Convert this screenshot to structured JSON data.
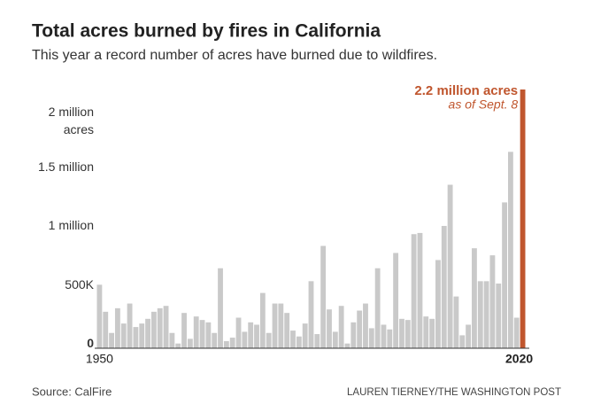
{
  "chart_data": {
    "type": "bar",
    "title": "Total acres burned by fires in California",
    "subtitle": "This year a record number of acres have burned due to wildfires.",
    "source": "Source: CalFire",
    "credit": "LAUREN TIERNEY/THE WASHINGTON POST",
    "annotation": "as of Sept. 8",
    "categories": [
      "1950",
      null,
      null,
      null,
      null,
      null,
      null,
      null,
      null,
      null,
      null,
      null,
      null,
      null,
      null,
      null,
      null,
      null,
      null,
      null,
      null,
      null,
      null,
      null,
      null,
      null,
      null,
      null,
      null,
      null,
      null,
      null,
      null,
      null,
      null,
      null,
      null,
      null,
      null,
      null,
      null,
      null,
      null,
      null,
      null,
      null,
      null,
      null,
      null,
      null,
      null,
      null,
      null,
      null,
      null,
      null,
      null,
      null,
      null,
      null,
      null,
      null,
      null,
      null,
      null,
      null,
      null,
      null,
      null,
      null,
      "2020"
    ],
    "values": [
      540000,
      310000,
      130000,
      340000,
      210000,
      380000,
      180000,
      210000,
      250000,
      310000,
      340000,
      360000,
      130000,
      40000,
      300000,
      80000,
      270000,
      240000,
      220000,
      130000,
      680000,
      60000,
      90000,
      260000,
      140000,
      220000,
      200000,
      470000,
      130000,
      380000,
      380000,
      300000,
      150000,
      100000,
      210000,
      570000,
      120000,
      870000,
      330000,
      140000,
      360000,
      40000,
      220000,
      320000,
      380000,
      170000,
      680000,
      200000,
      160000,
      810000,
      250000,
      240000,
      970000,
      980000,
      270000,
      250000,
      750000,
      1040000,
      1390000,
      440000,
      110000,
      200000,
      850000,
      570000,
      570000,
      790000,
      550000,
      1240000,
      1670000,
      260000,
      2200000
    ],
    "value_labels": [
      null,
      null,
      null,
      null,
      null,
      null,
      null,
      null,
      null,
      null,
      null,
      null,
      null,
      null,
      null,
      null,
      null,
      null,
      null,
      null,
      null,
      null,
      null,
      null,
      null,
      null,
      null,
      null,
      null,
      null,
      null,
      null,
      null,
      null,
      null,
      null,
      null,
      null,
      null,
      null,
      null,
      null,
      null,
      null,
      null,
      null,
      null,
      null,
      null,
      null,
      null,
      null,
      null,
      null,
      null,
      null,
      null,
      null,
      null,
      null,
      null,
      null,
      null,
      null,
      null,
      null,
      null,
      null,
      null,
      null,
      "2.2 million acres"
    ],
    "colors": [
      "#c9c9c9",
      "#c9c9c9",
      "#c9c9c9",
      "#c9c9c9",
      "#c9c9c9",
      "#c9c9c9",
      "#c9c9c9",
      "#c9c9c9",
      "#c9c9c9",
      "#c9c9c9",
      "#c9c9c9",
      "#c9c9c9",
      "#c9c9c9",
      "#c9c9c9",
      "#c9c9c9",
      "#c9c9c9",
      "#c9c9c9",
      "#c9c9c9",
      "#c9c9c9",
      "#c9c9c9",
      "#c9c9c9",
      "#c9c9c9",
      "#c9c9c9",
      "#c9c9c9",
      "#c9c9c9",
      "#c9c9c9",
      "#c9c9c9",
      "#c9c9c9",
      "#c9c9c9",
      "#c9c9c9",
      "#c9c9c9",
      "#c9c9c9",
      "#c9c9c9",
      "#c9c9c9",
      "#c9c9c9",
      "#c9c9c9",
      "#c9c9c9",
      "#c9c9c9",
      "#c9c9c9",
      "#c9c9c9",
      "#c9c9c9",
      "#c9c9c9",
      "#c9c9c9",
      "#c9c9c9",
      "#c9c9c9",
      "#c9c9c9",
      "#c9c9c9",
      "#c9c9c9",
      "#c9c9c9",
      "#c9c9c9",
      "#c9c9c9",
      "#c9c9c9",
      "#c9c9c9",
      "#c9c9c9",
      "#c9c9c9",
      "#c9c9c9",
      "#c9c9c9",
      "#c9c9c9",
      "#c9c9c9",
      "#c9c9c9",
      "#c9c9c9",
      "#c9c9c9",
      "#c9c9c9",
      "#c9c9c9",
      "#c9c9c9",
      "#c9c9c9",
      "#c9c9c9",
      "#c9c9c9",
      "#c9c9c9",
      "#c9c9c9",
      "#c0562e"
    ],
    "ylim": [
      0,
      2200000
    ],
    "yticks": [
      {
        "value": 0,
        "label": "0"
      },
      {
        "value": 500000,
        "label": "500K"
      },
      {
        "value": 1000000,
        "label": "1 million"
      },
      {
        "value": 1500000,
        "label": "1.5 million"
      },
      {
        "value": 2000000,
        "label": "2 million acres"
      }
    ],
    "grid": false
  }
}
